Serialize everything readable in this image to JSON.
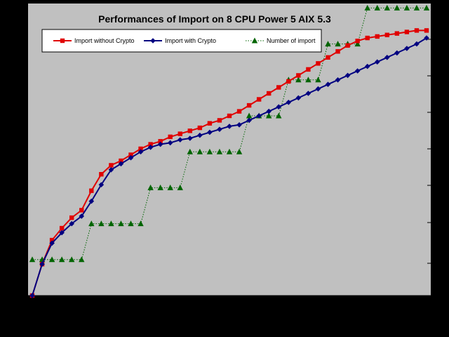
{
  "chart_data": {
    "type": "line",
    "title": "Performances of Import on 8 CPU Power 5 AIX 5.3",
    "xlabel": "",
    "ylabel": "",
    "grid": "horizontal",
    "legend_position": "top-left",
    "colors": {
      "background": "#000000",
      "plot_area": "#c0c0c0",
      "gridline": "#000000"
    },
    "x": [
      0,
      1,
      2,
      3,
      4,
      5,
      6,
      7,
      8,
      9,
      10,
      11,
      12,
      13,
      14,
      15,
      16,
      17,
      18,
      19,
      20,
      21,
      22,
      23,
      24,
      25,
      26,
      27,
      28,
      29,
      30,
      31,
      32,
      33,
      34,
      35,
      36,
      37,
      38,
      39,
      40
    ],
    "series": [
      {
        "name": "Import without Crypto",
        "color": "#e00000",
        "line": "solid",
        "marker": "square",
        "values": [
          0,
          21,
          37,
          45,
          52,
          57,
          70,
          81,
          87,
          90,
          94,
          98,
          101,
          103,
          106,
          108,
          110,
          112,
          115,
          117,
          120,
          123,
          127,
          131,
          135,
          139,
          143,
          147,
          151,
          155,
          159,
          163,
          167,
          170,
          172,
          173,
          174,
          175,
          176,
          177,
          177
        ]
      },
      {
        "name": "Import with Crypto",
        "color": "#000080",
        "line": "solid",
        "marker": "diamond",
        "values": [
          0,
          21,
          35,
          42,
          48,
          53,
          63,
          74,
          84,
          88,
          92,
          96,
          99,
          101,
          102,
          104,
          105,
          107,
          109,
          111,
          113,
          114,
          117,
          120,
          123,
          126,
          129,
          132,
          135,
          138,
          141,
          144,
          147,
          150,
          153,
          156,
          159,
          162,
          165,
          168,
          172
        ]
      },
      {
        "name": "Number of import",
        "color": "#006400",
        "line": "dotted",
        "marker": "triangle",
        "values": [
          24,
          24,
          24,
          24,
          24,
          24,
          48,
          48,
          48,
          48,
          48,
          48,
          72,
          72,
          72,
          72,
          96,
          96,
          96,
          96,
          96,
          96,
          120,
          120,
          120,
          120,
          144,
          144,
          144,
          144,
          168,
          168,
          168,
          168,
          192,
          192,
          192,
          192,
          192,
          192,
          192
        ]
      }
    ]
  }
}
